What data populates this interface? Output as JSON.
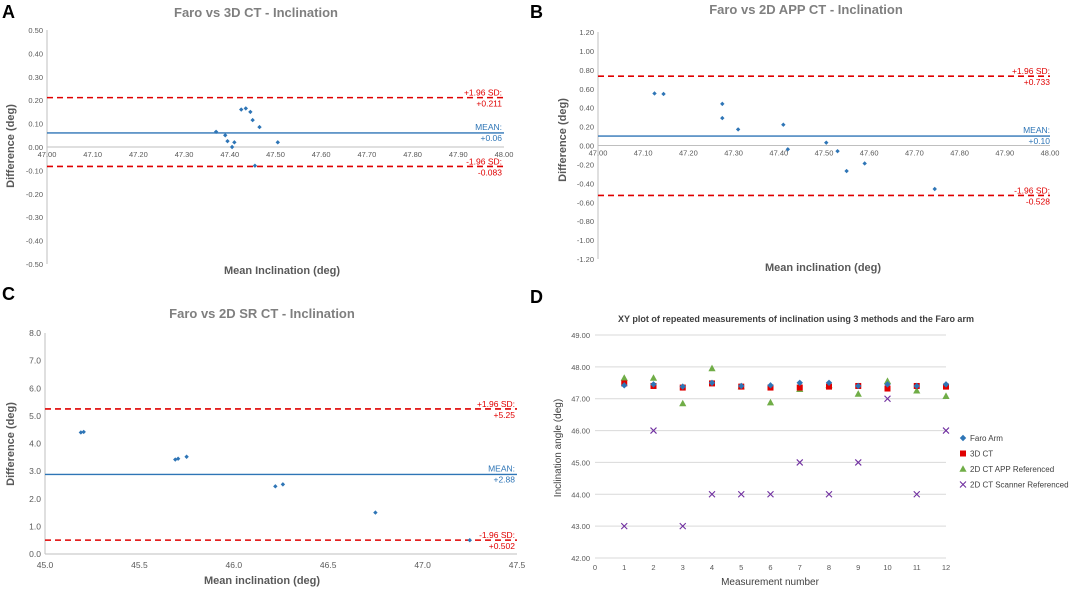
{
  "chart_data": [
    {
      "panel": "A",
      "type": "scatter",
      "title": "Faro vs 3D CT - Inclination",
      "xlabel": "Mean Inclination (deg)",
      "ylabel": "Difference (deg)",
      "xlim": [
        47.0,
        48.0
      ],
      "ylim": [
        -0.5,
        0.5
      ],
      "xticks": [
        "47.00",
        "47.10",
        "47.20",
        "47.30",
        "47.40",
        "47.50",
        "47.60",
        "47.70",
        "47.80",
        "47.90",
        "48.00"
      ],
      "yticks": [
        "0.50",
        "0.40",
        "0.30",
        "0.20",
        "0.10",
        "0.00",
        "-0.10",
        "-0.20",
        "-0.30",
        "-0.40",
        "-0.50"
      ],
      "points": [
        [
          47.37,
          0.065
        ],
        [
          47.39,
          0.05
        ],
        [
          47.395,
          0.025
        ],
        [
          47.41,
          0.02
        ],
        [
          47.405,
          0.0
        ],
        [
          47.425,
          0.16
        ],
        [
          47.435,
          0.165
        ],
        [
          47.445,
          0.15
        ],
        [
          47.45,
          0.115
        ],
        [
          47.465,
          0.085
        ],
        [
          47.455,
          -0.08
        ],
        [
          47.505,
          0.02
        ]
      ],
      "mean": 0.06,
      "upper": 0.211,
      "lower": -0.083,
      "upper_label": "+1.96 SD:",
      "upper_value": "+0.211",
      "mean_label": "MEAN:",
      "mean_value": "+0.06",
      "lower_label": "-1.96 SD:",
      "lower_value": "-0.083"
    },
    {
      "panel": "B",
      "type": "scatter",
      "title": "Faro vs 2D APP CT - Inclination",
      "xlabel": "Mean inclination (deg)",
      "ylabel": "Difference (deg)",
      "xlim": [
        47.0,
        48.0
      ],
      "ylim": [
        -1.2,
        1.2
      ],
      "xticks": [
        "47.00",
        "47.10",
        "47.20",
        "47.30",
        "47.40",
        "47.50",
        "47.60",
        "47.70",
        "47.80",
        "47.90",
        "48.00"
      ],
      "yticks": [
        "1.20",
        "1.00",
        "0.80",
        "0.60",
        "0.40",
        "0.20",
        "0.00",
        "-0.20",
        "-0.40",
        "-0.60",
        "-0.80",
        "-1.00",
        "-1.20"
      ],
      "points": [
        [
          47.125,
          0.55
        ],
        [
          47.145,
          0.545
        ],
        [
          47.275,
          0.44
        ],
        [
          47.275,
          0.29
        ],
        [
          47.31,
          0.17
        ],
        [
          47.41,
          0.22
        ],
        [
          47.42,
          -0.04
        ],
        [
          47.505,
          0.03
        ],
        [
          47.53,
          -0.06
        ],
        [
          47.55,
          -0.27
        ],
        [
          47.59,
          -0.19
        ],
        [
          47.745,
          -0.46
        ]
      ],
      "mean": 0.1,
      "upper": 0.733,
      "lower": -0.528,
      "upper_label": "+1.96 SD:",
      "upper_value": "+0.733",
      "mean_label": "MEAN:",
      "mean_value": "+0.10",
      "lower_label": "-1.96 SD:",
      "lower_value": "-0.528"
    },
    {
      "panel": "C",
      "type": "scatter",
      "title": "Faro vs 2D SR CT - Inclination",
      "xlabel": "Mean inclination (deg)",
      "ylabel": "Difference (deg)",
      "xlim": [
        45.0,
        47.5
      ],
      "ylim": [
        0.0,
        8.0
      ],
      "xticks": [
        "45.0",
        "45.5",
        "46.0",
        "46.5",
        "47.0",
        "47.5"
      ],
      "yticks": [
        "8.0",
        "7.0",
        "6.0",
        "5.0",
        "4.0",
        "3.0",
        "2.0",
        "1.0",
        "0.0"
      ],
      "points": [
        [
          45.19,
          4.4
        ],
        [
          45.205,
          4.42
        ],
        [
          45.69,
          3.42
        ],
        [
          45.705,
          3.45
        ],
        [
          45.75,
          3.52
        ],
        [
          46.22,
          2.45
        ],
        [
          46.26,
          2.52
        ],
        [
          46.75,
          1.5
        ],
        [
          47.25,
          0.5
        ]
      ],
      "mean": 2.88,
      "upper": 5.25,
      "lower": 0.502,
      "upper_label": "+1.96 SD:",
      "upper_value": "+5.25",
      "mean_label": "MEAN:",
      "mean_value": "+2.88",
      "lower_label": "-1.96 SD:",
      "lower_value": "+0.502"
    },
    {
      "panel": "D",
      "type": "scatter",
      "title": "XY plot of repeated measurements of inclination using 3 methods and the Faro arm",
      "xlabel": "Measurement number",
      "ylabel": "Inclination angle (deg)",
      "xlim": [
        0,
        12
      ],
      "ylim": [
        42.0,
        49.0
      ],
      "xticks": [
        "0",
        "1",
        "2",
        "3",
        "4",
        "5",
        "6",
        "7",
        "8",
        "9",
        "10",
        "11",
        "12"
      ],
      "yticks": [
        "49.00",
        "48.00",
        "47.00",
        "46.00",
        "45.00",
        "44.00",
        "43.00",
        "42.00"
      ],
      "x": [
        1,
        2,
        3,
        4,
        5,
        6,
        7,
        8,
        9,
        10,
        11,
        12
      ],
      "series": [
        {
          "name": "Faro Arm",
          "marker": "diamond",
          "color": "#2e75b6",
          "values": [
            47.42,
            47.45,
            47.38,
            47.5,
            47.4,
            47.42,
            47.5,
            47.5,
            47.4,
            47.45,
            47.4,
            47.45
          ]
        },
        {
          "name": "3D CT",
          "marker": "square",
          "color": "#e00000",
          "values": [
            47.48,
            47.4,
            47.35,
            47.48,
            47.38,
            47.35,
            47.35,
            47.38,
            47.4,
            47.32,
            47.4,
            47.38
          ]
        },
        {
          "name": "2D CT APP Referenced",
          "marker": "triangle",
          "color": "#70ad47",
          "values": [
            47.65,
            47.65,
            46.85,
            47.95,
            47.38,
            46.88,
            47.3,
            47.42,
            47.15,
            47.55,
            47.25,
            47.08
          ]
        },
        {
          "name": "2D CT Scanner Referenced",
          "marker": "x",
          "color": "#7030a0",
          "values": [
            43.0,
            46.0,
            43.0,
            44.0,
            44.0,
            44.0,
            45.0,
            44.0,
            45.0,
            47.0,
            44.0,
            46.0
          ]
        }
      ]
    }
  ]
}
